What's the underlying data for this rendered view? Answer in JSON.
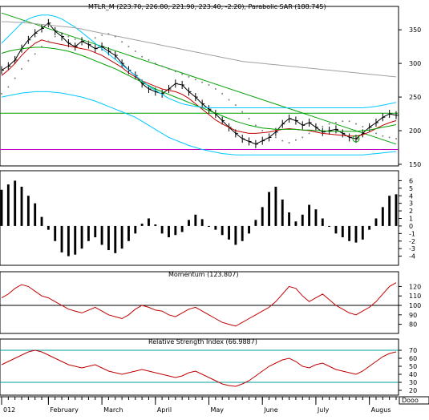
{
  "chart_data": [
    {
      "type": "line",
      "panel": "price",
      "title": "MTLR_M (223.70, 226.80, 221.90, 223.40, -2.20), Parabolic SAR (188.745)",
      "ylim": [
        150,
        380
      ],
      "yticks": [
        "150",
        "200",
        "250",
        "300",
        "350"
      ],
      "series": [
        {
          "role": "close",
          "color": "#000000",
          "values": [
            290,
            296,
            305,
            322,
            335,
            345,
            352,
            360,
            348,
            340,
            330,
            325,
            333,
            328,
            322,
            325,
            318,
            312,
            300,
            290,
            282,
            270,
            262,
            258,
            255,
            262,
            270,
            268,
            258,
            250,
            240,
            232,
            225,
            215,
            205,
            196,
            188,
            184,
            180,
            185,
            190,
            198,
            210,
            218,
            215,
            208,
            212,
            205,
            198,
            200,
            202,
            196,
            190,
            188,
            196,
            205,
            212,
            220,
            225,
            223
          ]
        },
        {
          "role": "moving-average-short",
          "color": "#c00000",
          "values": [
            282,
            290,
            300,
            312,
            322,
            330,
            335,
            332,
            330,
            328,
            326,
            324,
            322,
            320,
            316,
            312,
            306,
            300,
            294,
            286,
            280,
            274,
            270,
            266,
            262,
            260,
            258,
            254,
            248,
            240,
            232,
            224,
            216,
            210,
            205,
            200,
            198,
            196,
            196,
            197,
            198,
            200,
            202,
            203,
            202,
            201,
            200,
            198,
            196,
            195,
            194,
            193,
            192,
            192,
            194,
            198,
            203,
            208,
            212,
            215
          ]
        },
        {
          "role": "moving-average-long",
          "color": "#00a000",
          "values": [
            315,
            318,
            320,
            322,
            323,
            324,
            324,
            323,
            322,
            320,
            318,
            315,
            312,
            308,
            304,
            300,
            296,
            292,
            287,
            282,
            277,
            272,
            267,
            262,
            258,
            254,
            250,
            246,
            242,
            238,
            234,
            230,
            226,
            222,
            218,
            214,
            211,
            208,
            206,
            204,
            203,
            202,
            202,
            202,
            202,
            201,
            201,
            200,
            200,
            199,
            199,
            199,
            199,
            199,
            200,
            201,
            203,
            205,
            207,
            209
          ]
        },
        {
          "role": "band-upper",
          "color": "#00c8ff",
          "values": [
            330,
            340,
            350,
            360,
            366,
            370,
            372,
            372,
            370,
            366,
            360,
            354,
            346,
            338,
            330,
            322,
            314,
            306,
            298,
            290,
            282,
            274,
            266,
            260,
            254,
            248,
            244,
            240,
            238,
            236,
            235,
            234,
            234,
            234,
            234,
            234,
            234,
            234,
            234,
            234,
            234,
            234,
            234,
            234,
            234,
            234,
            234,
            234,
            234,
            234,
            234,
            234,
            234,
            234,
            234,
            235,
            236,
            238,
            240,
            242
          ]
        },
        {
          "role": "band-lower",
          "color": "#00c8ff",
          "values": [
            250,
            252,
            254,
            256,
            257,
            258,
            258,
            258,
            257,
            256,
            254,
            252,
            250,
            247,
            244,
            240,
            236,
            232,
            228,
            224,
            220,
            214,
            208,
            202,
            196,
            190,
            186,
            182,
            178,
            175,
            172,
            170,
            168,
            166,
            165,
            164,
            164,
            164,
            164,
            164,
            164,
            164,
            164,
            164,
            164,
            164,
            164,
            164,
            164,
            164,
            164,
            164,
            164,
            164,
            164,
            165,
            166,
            167,
            168,
            169
          ]
        },
        {
          "role": "long-average",
          "color": "#a0a0a0",
          "values": [
            362,
            362,
            361,
            361,
            360,
            359,
            358,
            357,
            356,
            355,
            354,
            353,
            351,
            349,
            347,
            345,
            343,
            341,
            339,
            337,
            335,
            333,
            331,
            329,
            327,
            325,
            323,
            321,
            319,
            317,
            315,
            313,
            311,
            309,
            307,
            305,
            303,
            302,
            301,
            300,
            299,
            298,
            297,
            296,
            295,
            294,
            293,
            292,
            291,
            290,
            289,
            288,
            287,
            286,
            285,
            284,
            283,
            282,
            281,
            280
          ]
        },
        {
          "role": "parabolic-sar",
          "color": "#808080",
          "values": [
            255,
            265,
            278,
            292,
            304,
            314,
            325,
            333,
            340,
            342,
            340,
            336,
            330,
            332,
            338,
            342,
            344,
            340,
            332,
            325,
            318,
            310,
            305,
            300,
            296,
            292,
            288,
            284,
            280,
            276,
            272,
            268,
            262,
            255,
            246,
            238,
            228,
            218,
            208,
            200,
            192,
            190,
            185,
            182,
            186,
            190,
            196,
            200,
            206,
            210,
            212,
            214,
            214,
            210,
            206,
            202,
            196,
            192,
            190,
            188
          ]
        }
      ],
      "levels": [
        {
          "value": 226,
          "color": "#00a000"
        },
        {
          "value": 172,
          "color": "#c000c0"
        }
      ],
      "trendline": {
        "color": "#00a000",
        "from": [
          0,
          375
        ],
        "to": [
          60,
          180
        ]
      }
    },
    {
      "type": "bar",
      "panel": "histogram",
      "ylim": [
        -5,
        7
      ],
      "yticks": [
        "-4",
        "-3",
        "-2",
        "-1",
        "0",
        "1",
        "2",
        "3",
        "4",
        "5",
        "6"
      ],
      "values": [
        4.8,
        5.5,
        6,
        5.2,
        4,
        3,
        1.2,
        -0.5,
        -2,
        -3.5,
        -4,
        -3.8,
        -3,
        -2,
        -1.5,
        -2.5,
        -3.2,
        -3.6,
        -3,
        -2,
        -1,
        0.3,
        1,
        0.2,
        -1,
        -1.5,
        -1.2,
        -0.8,
        0.8,
        1.5,
        0.9,
        0,
        -0.5,
        -1.2,
        -1.8,
        -2.5,
        -2,
        -1,
        0.8,
        2.5,
        4.5,
        5.2,
        3.5,
        1.8,
        0.6,
        1.5,
        2.8,
        2.2,
        1,
        0,
        -1,
        -1.5,
        -2,
        -2.2,
        -1.8,
        -0.5,
        1,
        2.5,
        4,
        4.2
      ]
    },
    {
      "type": "line",
      "panel": "momentum",
      "title": "Momentum (123.807)",
      "ylim": [
        72,
        128
      ],
      "yticks": [
        "80",
        "90",
        "100",
        "110",
        "120"
      ],
      "reference": 100,
      "series": [
        {
          "color": "#c00000",
          "values": [
            108,
            112,
            118,
            122,
            120,
            115,
            110,
            108,
            104,
            100,
            96,
            94,
            92,
            95,
            98,
            94,
            90,
            88,
            86,
            90,
            96,
            100,
            98,
            95,
            94,
            90,
            88,
            92,
            96,
            98,
            94,
            90,
            86,
            82,
            80,
            78,
            82,
            86,
            90,
            94,
            98,
            104,
            112,
            120,
            118,
            110,
            104,
            108,
            112,
            106,
            100,
            96,
            92,
            90,
            94,
            98,
            104,
            112,
            120,
            124
          ]
        }
      ]
    },
    {
      "type": "line",
      "panel": "rsi",
      "title": "Relative Strength Index (66.9887)",
      "ylim": [
        16,
        76
      ],
      "yticks": [
        "20",
        "30",
        "40",
        "50",
        "60",
        "70"
      ],
      "references": [
        70,
        30
      ],
      "series": [
        {
          "color": "#c00000",
          "values": [
            52,
            56,
            60,
            64,
            68,
            70,
            68,
            64,
            60,
            56,
            52,
            50,
            48,
            50,
            52,
            48,
            44,
            42,
            40,
            42,
            44,
            46,
            44,
            42,
            40,
            38,
            36,
            38,
            42,
            44,
            40,
            36,
            32,
            28,
            26,
            25,
            28,
            32,
            38,
            44,
            50,
            54,
            58,
            60,
            56,
            50,
            48,
            52,
            54,
            50,
            46,
            44,
            42,
            40,
            44,
            50,
            56,
            62,
            66,
            68
          ]
        }
      ]
    }
  ],
  "x_axis": {
    "tick_labels": [
      "012",
      "February",
      "March",
      "April",
      "May",
      "June",
      "July",
      "Augus"
    ],
    "tick_index": [
      0,
      7,
      15,
      23,
      31,
      39,
      47,
      55
    ],
    "corner_label": "Dooo"
  }
}
